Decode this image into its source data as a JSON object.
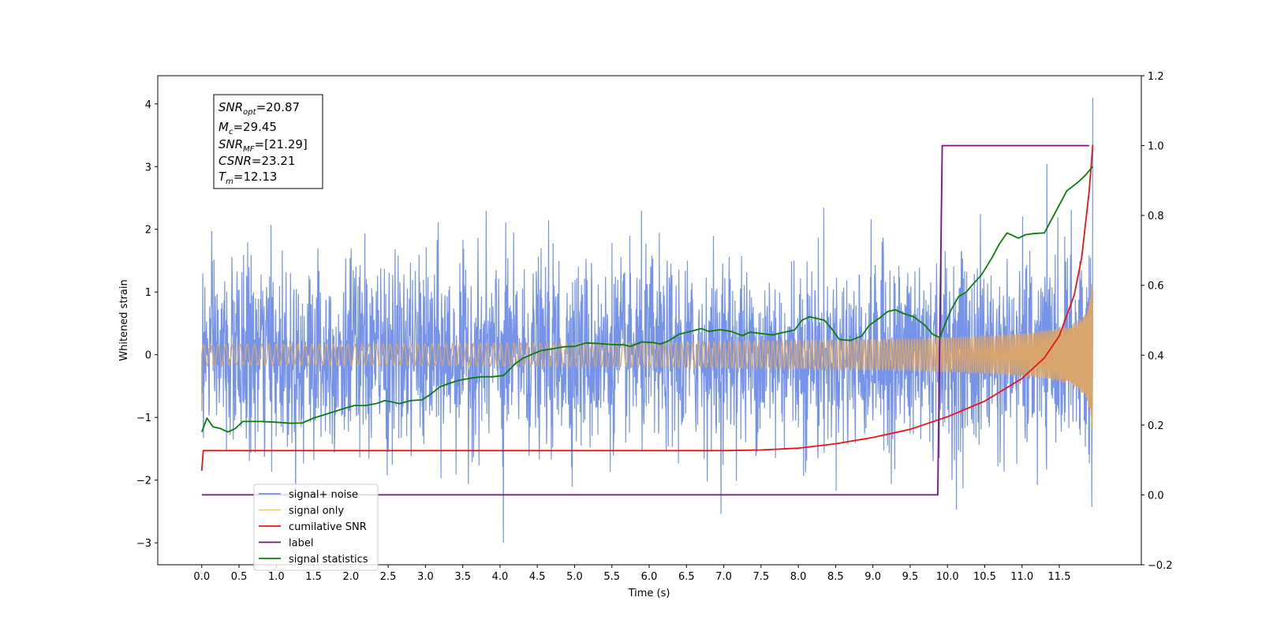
{
  "chart_data": {
    "type": "line",
    "xlabel": "Time (s)",
    "ylabel": "Whitened strain",
    "xlim": [
      -0.59,
      12.6
    ],
    "ylim": [
      -3.35,
      4.45
    ],
    "ylim_right": [
      -0.2,
      1.2
    ],
    "x_ticks": [
      "0.0",
      "0.5",
      "1.0",
      "1.5",
      "2.0",
      "2.5",
      "3.0",
      "3.5",
      "4.0",
      "4.5",
      "5.0",
      "5.5",
      "6.0",
      "6.5",
      "7.0",
      "7.5",
      "8.0",
      "8.5",
      "9.0",
      "9.5",
      "10.0",
      "10.5",
      "11.0",
      "11.5"
    ],
    "y_ticks": [
      "−3",
      "−2",
      "−1",
      "0",
      "1",
      "2",
      "3",
      "4"
    ],
    "y_ticks_right": [
      "−0.2",
      "0.0",
      "0.2",
      "0.4",
      "0.6",
      "0.8",
      "1.0",
      "1.2"
    ],
    "grid": false,
    "legend_position": "lower-left",
    "series": [
      {
        "name": "signal+ noise",
        "color": "#7593e8",
        "axis": "left",
        "description_values": {
          "noise_std": 0.72,
          "y_max": 4.1,
          "y_min": -3.0
        }
      },
      {
        "name": "signal only",
        "color": "#f5c77a",
        "axis": "left",
        "description_values": {
          "t_start": 0.0,
          "t_merge": 11.95,
          "amp_end": 1.2
        }
      },
      {
        "name": "cumilative SNR",
        "color": "#ee1111",
        "axis": "left",
        "x": [
          0.0,
          0.02,
          1.0,
          3.0,
          5.0,
          7.0,
          7.5,
          8.0,
          8.5,
          9.0,
          9.5,
          10.0,
          10.5,
          11.0,
          11.3,
          11.5,
          11.7,
          11.8,
          11.9,
          11.95
        ],
        "y": [
          -1.85,
          -1.53,
          -1.53,
          -1.53,
          -1.53,
          -1.53,
          -1.52,
          -1.49,
          -1.42,
          -1.32,
          -1.19,
          -0.99,
          -0.74,
          -0.38,
          -0.05,
          0.3,
          0.95,
          1.55,
          2.6,
          3.35
        ]
      },
      {
        "name": "label",
        "color": "#7b0f85",
        "axis": "right",
        "x": [
          0.0,
          9.87,
          9.93,
          11.9
        ],
        "y": [
          0.0,
          0.0,
          1.0,
          1.0
        ]
      },
      {
        "name": "signal statistics",
        "color": "#0a7d0a",
        "axis": "right",
        "x": [
          0.0,
          0.07,
          0.15,
          0.25,
          0.35,
          0.45,
          0.55,
          0.65,
          0.8,
          1.0,
          1.2,
          1.35,
          1.5,
          1.65,
          1.8,
          1.95,
          2.05,
          2.2,
          2.35,
          2.45,
          2.55,
          2.65,
          2.8,
          2.95,
          3.05,
          3.2,
          3.3,
          3.45,
          3.6,
          3.75,
          3.9,
          4.05,
          4.2,
          4.3,
          4.4,
          4.55,
          4.7,
          4.85,
          5.0,
          5.15,
          5.25,
          5.4,
          5.55,
          5.65,
          5.75,
          5.9,
          6.05,
          6.15,
          6.25,
          6.4,
          6.55,
          6.7,
          6.8,
          6.95,
          7.1,
          7.25,
          7.35,
          7.5,
          7.65,
          7.8,
          7.95,
          8.05,
          8.15,
          8.25,
          8.35,
          8.45,
          8.55,
          8.7,
          8.85,
          8.95,
          9.1,
          9.2,
          9.3,
          9.4,
          9.55,
          9.7,
          9.8,
          9.9,
          9.95,
          10.05,
          10.15,
          10.25,
          10.35,
          10.45,
          10.5,
          10.6,
          10.7,
          10.8,
          10.95,
          11.05,
          11.15,
          11.3,
          11.45,
          11.6,
          11.75,
          11.85,
          11.95
        ],
        "y": [
          0.18,
          0.22,
          0.195,
          0.19,
          0.18,
          0.19,
          0.21,
          0.21,
          0.21,
          0.208,
          0.205,
          0.206,
          0.22,
          0.23,
          0.24,
          0.25,
          0.256,
          0.256,
          0.262,
          0.27,
          0.266,
          0.261,
          0.27,
          0.272,
          0.285,
          0.31,
          0.318,
          0.328,
          0.334,
          0.338,
          0.338,
          0.342,
          0.375,
          0.39,
          0.4,
          0.413,
          0.418,
          0.424,
          0.425,
          0.435,
          0.434,
          0.432,
          0.43,
          0.43,
          0.425,
          0.438,
          0.436,
          0.432,
          0.44,
          0.46,
          0.468,
          0.476,
          0.468,
          0.473,
          0.468,
          0.456,
          0.466,
          0.462,
          0.458,
          0.465,
          0.472,
          0.5,
          0.51,
          0.505,
          0.5,
          0.475,
          0.445,
          0.442,
          0.455,
          0.485,
          0.508,
          0.525,
          0.53,
          0.52,
          0.51,
          0.485,
          0.46,
          0.45,
          0.48,
          0.53,
          0.568,
          0.58,
          0.605,
          0.628,
          0.645,
          0.68,
          0.72,
          0.75,
          0.735,
          0.745,
          0.748,
          0.75,
          0.81,
          0.87,
          0.895,
          0.915,
          0.94
        ]
      }
    ],
    "annotation_box": [
      {
        "base": "SNR",
        "sub": "opt",
        "value": "=20.87"
      },
      {
        "base": "M",
        "sub": "c",
        "value": "=29.45"
      },
      {
        "base": "SNR",
        "sub": "MF",
        "value": "=[21.29]"
      },
      {
        "base": "CSNR",
        "sub": "",
        "value": "=23.21"
      },
      {
        "base": "T",
        "sub": "m",
        "value": "=12.13"
      }
    ]
  }
}
